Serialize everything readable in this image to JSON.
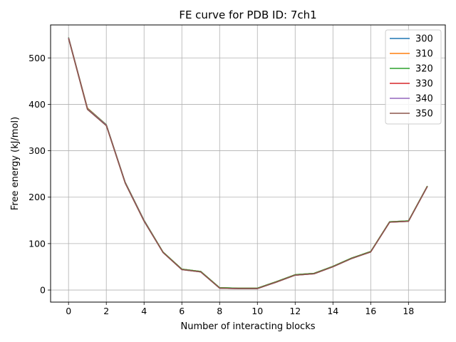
{
  "chart_data": {
    "type": "line",
    "title": "FE curve for PDB ID: 7ch1",
    "xlabel": "Number of interacting blocks",
    "ylabel": "Free energy (kJ/mol)",
    "xlim": [
      -0.95,
      19.95
    ],
    "ylim": [
      -26,
      571
    ],
    "xticks": [
      0,
      2,
      4,
      6,
      8,
      10,
      12,
      14,
      16,
      18
    ],
    "yticks": [
      0,
      100,
      200,
      300,
      400,
      500
    ],
    "grid": true,
    "legend_position": "top-right",
    "x": [
      0,
      1,
      2,
      3,
      4,
      5,
      6,
      7,
      8,
      9,
      10,
      11,
      12,
      13,
      14,
      15,
      16,
      17,
      18,
      19
    ],
    "series": [
      {
        "name": "300",
        "color": "#1f77b4",
        "values": [
          544,
          392,
          356,
          232,
          150,
          82,
          45,
          40,
          5,
          4,
          4,
          18,
          33,
          36,
          51,
          69,
          83,
          147,
          149,
          224
        ]
      },
      {
        "name": "310",
        "color": "#ff7f0e",
        "values": [
          544,
          392,
          356,
          232,
          150,
          82,
          45,
          40,
          5,
          4,
          4,
          18,
          33,
          36,
          51,
          69,
          83,
          147,
          149,
          224
        ]
      },
      {
        "name": "320",
        "color": "#2ca02c",
        "values": [
          544,
          391,
          356,
          232,
          150,
          82,
          45,
          40,
          5,
          4,
          4,
          18,
          33,
          36,
          51,
          69,
          83,
          147,
          149,
          224
        ]
      },
      {
        "name": "330",
        "color": "#d62728",
        "values": [
          543,
          390,
          355,
          231,
          149,
          81,
          44,
          39,
          4,
          3,
          3,
          17,
          32,
          35,
          50,
          68,
          82,
          146,
          148,
          223
        ]
      },
      {
        "name": "340",
        "color": "#9467bd",
        "values": [
          543,
          390,
          355,
          231,
          149,
          81,
          44,
          39,
          4,
          3,
          3,
          17,
          32,
          35,
          50,
          68,
          82,
          146,
          148,
          223
        ]
      },
      {
        "name": "350",
        "color": "#8c564b",
        "values": [
          542,
          389,
          354,
          230,
          148,
          81,
          44,
          39,
          4,
          3,
          3,
          17,
          32,
          35,
          50,
          68,
          82,
          146,
          148,
          223
        ]
      }
    ]
  }
}
